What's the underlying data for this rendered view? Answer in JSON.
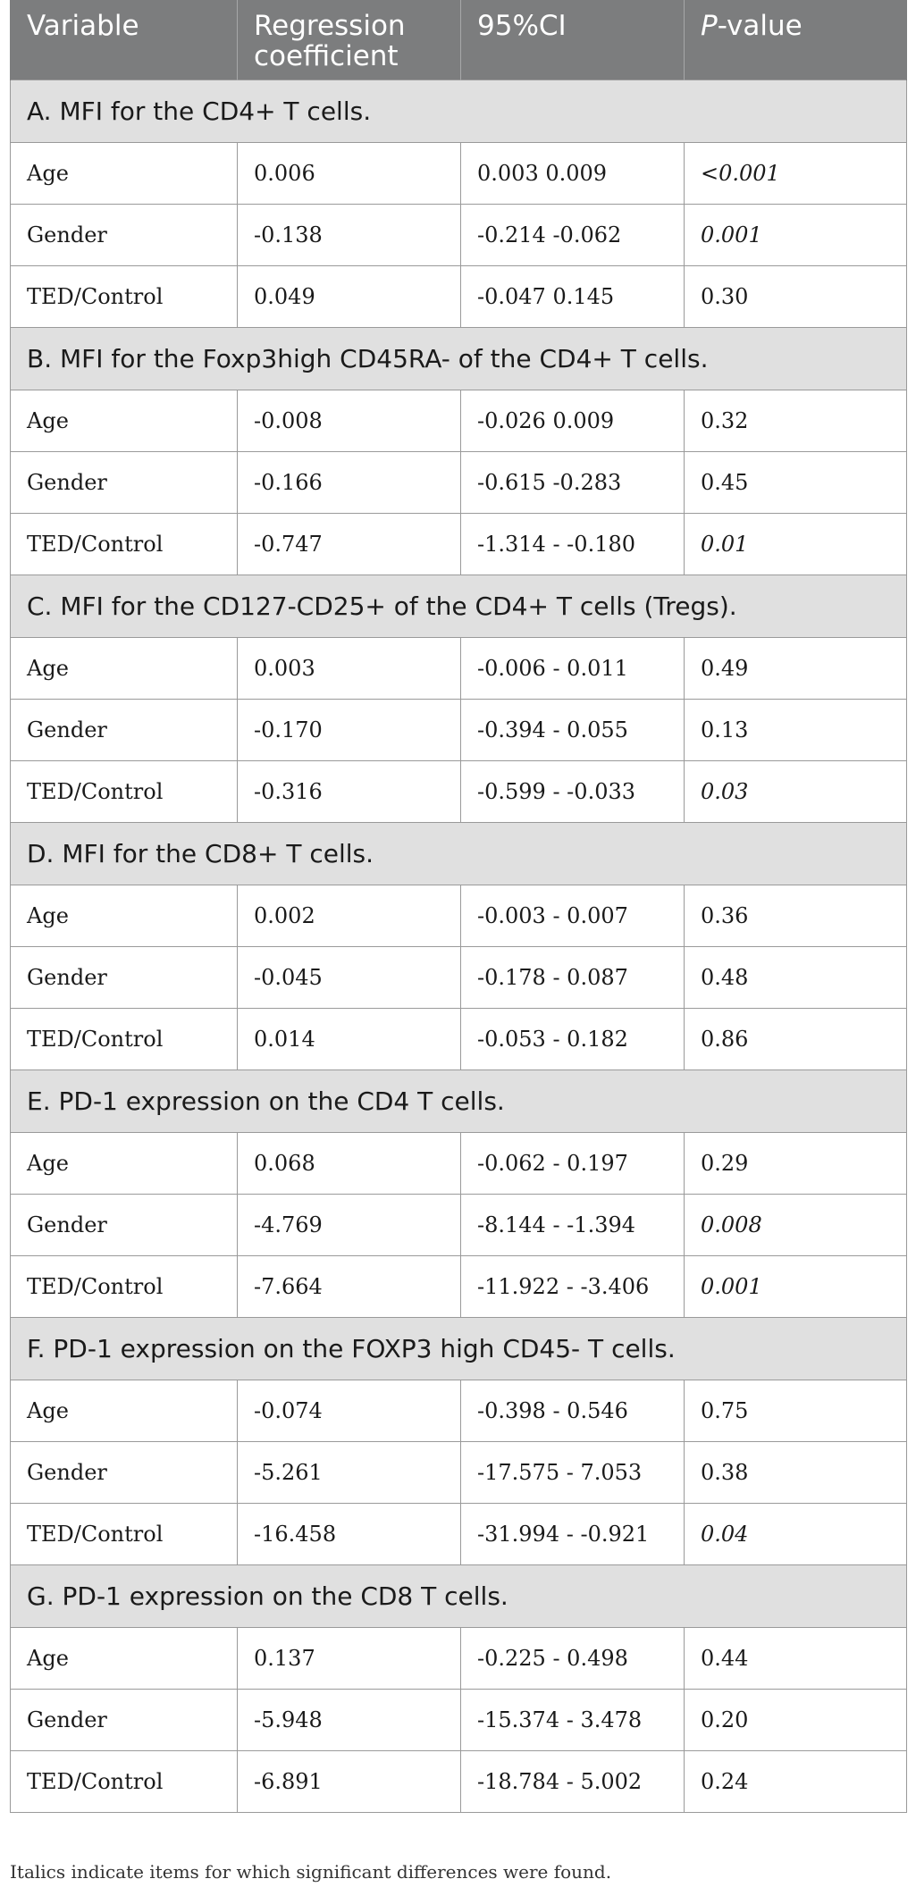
{
  "table": {
    "headers": {
      "variable": "Variable",
      "coefficient": "Regression coefficient",
      "ci": "95%CI",
      "p_italic": "P",
      "p_rest": "-value"
    },
    "sections": [
      {
        "title": "A. MFI for the CD4+ T cells.",
        "rows": [
          {
            "variable": "Age",
            "coef": "0.006",
            "ci": "0.003 0.009",
            "p": "<0.001",
            "significant": true
          },
          {
            "variable": "Gender",
            "coef": "-0.138",
            "ci": "-0.214 -0.062",
            "p": "0.001",
            "significant": true
          },
          {
            "variable": "TED/Control",
            "coef": "0.049",
            "ci": "-0.047 0.145",
            "p": "0.30",
            "significant": false
          }
        ]
      },
      {
        "title": "B. MFI for the Foxp3high CD45RA- of the CD4+ T cells.",
        "rows": [
          {
            "variable": "Age",
            "coef": "-0.008",
            "ci": "-0.026 0.009",
            "p": "0.32",
            "significant": false
          },
          {
            "variable": "Gender",
            "coef": "-0.166",
            "ci": "-0.615 -0.283",
            "p": "0.45",
            "significant": false
          },
          {
            "variable": "TED/Control",
            "coef": "-0.747",
            "ci": "-1.314 - -0.180",
            "p": "0.01",
            "significant": true
          }
        ]
      },
      {
        "title": "C. MFI for the CD127-CD25+ of the CD4+ T cells (Tregs).",
        "rows": [
          {
            "variable": "Age",
            "coef": "0.003",
            "ci": "-0.006 - 0.011",
            "p": "0.49",
            "significant": false
          },
          {
            "variable": "Gender",
            "coef": "-0.170",
            "ci": "-0.394 - 0.055",
            "p": "0.13",
            "significant": false
          },
          {
            "variable": "TED/Control",
            "coef": "-0.316",
            "ci": "-0.599 - -0.033",
            "p": "0.03",
            "significant": true
          }
        ]
      },
      {
        "title": "D. MFI for the CD8+ T cells.",
        "rows": [
          {
            "variable": "Age",
            "coef": "0.002",
            "ci": "-0.003 - 0.007",
            "p": "0.36",
            "significant": false
          },
          {
            "variable": "Gender",
            "coef": "-0.045",
            "ci": "-0.178 - 0.087",
            "p": "0.48",
            "significant": false
          },
          {
            "variable": "TED/Control",
            "coef": "0.014",
            "ci": "-0.053 - 0.182",
            "p": "0.86",
            "significant": false
          }
        ]
      },
      {
        "title": "E. PD-1 expression on the CD4 T cells.",
        "rows": [
          {
            "variable": "Age",
            "coef": "0.068",
            "ci": "-0.062 - 0.197",
            "p": "0.29",
            "significant": false
          },
          {
            "variable": "Gender",
            "coef": "-4.769",
            "ci": "-8.144 - -1.394",
            "p": "0.008",
            "significant": true
          },
          {
            "variable": "TED/Control",
            "coef": "-7.664",
            "ci": "-11.922 - -3.406",
            "p": "0.001",
            "significant": true
          }
        ]
      },
      {
        "title": "F. PD-1 expression on the FOXP3 high CD45- T cells.",
        "rows": [
          {
            "variable": "Age",
            "coef": "-0.074",
            "ci": "-0.398 - 0.546",
            "p": "0.75",
            "significant": false
          },
          {
            "variable": "Gender",
            "coef": "-5.261",
            "ci": "-17.575 - 7.053",
            "p": "0.38",
            "significant": false
          },
          {
            "variable": "TED/Control",
            "coef": "-16.458",
            "ci": "-31.994 - -0.921",
            "p": "0.04",
            "significant": true
          }
        ]
      },
      {
        "title": "G. PD-1 expression on the CD8 T cells.",
        "rows": [
          {
            "variable": "Age",
            "coef": "0.137",
            "ci": "-0.225 - 0.498",
            "p": "0.44",
            "significant": false
          },
          {
            "variable": "Gender",
            "coef": "-5.948",
            "ci": "-15.374 - 3.478",
            "p": "0.20",
            "significant": false
          },
          {
            "variable": "TED/Control",
            "coef": "-6.891",
            "ci": "-18.784 - 5.002",
            "p": "0.24",
            "significant": false
          }
        ]
      }
    ]
  },
  "footnote": "Italics indicate items for which significant differences were found."
}
